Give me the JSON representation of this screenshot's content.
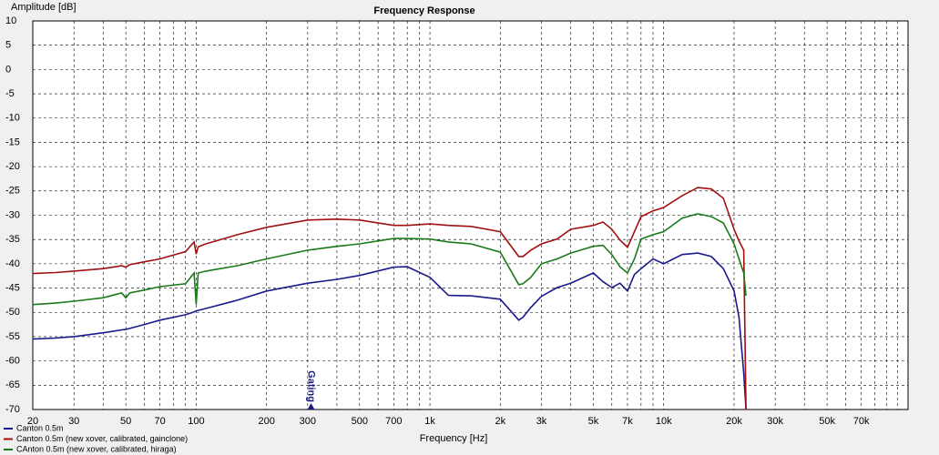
{
  "chart_data": {
    "type": "line",
    "title": "Frequency Response",
    "x_label": "Frequency [Hz]",
    "y_label": "Amplitude [dB]",
    "x_scale": "log",
    "grid": true,
    "xlim": [
      20,
      111000
    ],
    "ylim": [
      -70,
      10
    ],
    "xticks": [
      20,
      30,
      50,
      70,
      100,
      200,
      300,
      500,
      700,
      {
        "value": 1000,
        "label": "1k"
      },
      {
        "value": 2000,
        "label": "2k"
      },
      {
        "value": 3000,
        "label": "3k"
      },
      {
        "value": 5000,
        "label": "5k"
      },
      {
        "value": 7000,
        "label": "7k"
      },
      {
        "value": 10000,
        "label": "10k"
      },
      {
        "value": 20000,
        "label": "20k"
      },
      {
        "value": 30000,
        "label": "30k"
      },
      {
        "value": 50000,
        "label": "50k"
      },
      {
        "value": 70000,
        "label": "70k"
      }
    ],
    "x_minor_gridlines": [
      40,
      60,
      80,
      90,
      400,
      600,
      800,
      900,
      4000,
      6000,
      8000,
      9000,
      40000,
      60000,
      80000,
      90000,
      100000
    ],
    "yticks": [
      10,
      5,
      0,
      -5,
      -10,
      -15,
      -20,
      -25,
      -30,
      -35,
      -40,
      -45,
      -50,
      -55,
      -60,
      -65,
      -70
    ],
    "annotation": {
      "text": "Gating",
      "x": 310
    },
    "x": [
      20,
      25,
      30,
      40,
      48,
      50,
      52,
      60,
      70,
      90,
      98,
      100,
      102,
      110,
      150,
      200,
      300,
      400,
      500,
      700,
      800,
      1000,
      1200,
      1500,
      2000,
      2400,
      2500,
      2700,
      3000,
      3500,
      4000,
      5000,
      5500,
      6000,
      6500,
      7000,
      7500,
      8000,
      9000,
      10000,
      12000,
      14000,
      16000,
      18000,
      20000,
      21000,
      22000,
      22500
    ],
    "series": [
      {
        "name": "Canton 0.5m",
        "color": "#1a1a8c",
        "values": [
          -55.5,
          -55.3,
          -55,
          -54.2,
          -53.6,
          -53.5,
          -53.3,
          -52.5,
          -51.6,
          -50.5,
          -49.9,
          -49.7,
          -49.6,
          -49.2,
          -47.5,
          -45.6,
          -44,
          -43.2,
          -42.4,
          -40.7,
          -40.6,
          -42.8,
          -46.5,
          -46.6,
          -47.3,
          -51.6,
          -51,
          -49,
          -46.7,
          -44.9,
          -44,
          -41.9,
          -43.7,
          -44.9,
          -44,
          -45.6,
          -42.2,
          -41,
          -39,
          -40,
          -38.1,
          -37.8,
          -38.5,
          -41,
          -45.6,
          -51,
          -62.5,
          -70
        ]
      },
      {
        "name": "Canton 0.5m (new xover, calibrated, gainclone)",
        "color": "#a01010",
        "values": [
          -42,
          -41.8,
          -41.5,
          -41,
          -40.4,
          -40.7,
          -40.2,
          -39.6,
          -39,
          -37.5,
          -35.5,
          -38,
          -36.5,
          -35.9,
          -34,
          -32.5,
          -31,
          -30.8,
          -31,
          -32.1,
          -32.1,
          -31.8,
          -32.1,
          -32.3,
          -33.4,
          -38.5,
          -38.5,
          -37.2,
          -35.9,
          -34.9,
          -32.9,
          -32.1,
          -31.4,
          -32.9,
          -35.1,
          -36.6,
          -33.4,
          -30.3,
          -29.1,
          -28.4,
          -26,
          -24.3,
          -24.6,
          -26.5,
          -32.9,
          -35.3,
          -37.2,
          -70
        ]
      },
      {
        "name": "CAnton 0.5m (new xover, calibrated, hiraga)",
        "color": "#1a7a1a",
        "values": [
          -48.4,
          -48.1,
          -47.7,
          -47,
          -46,
          -47,
          -46,
          -45.4,
          -44.7,
          -44.1,
          -41.9,
          -48.4,
          -41.9,
          -41.5,
          -40.4,
          -39,
          -37.2,
          -36.4,
          -35.9,
          -34.8,
          -34.8,
          -34.9,
          -35.5,
          -35.9,
          -37.6,
          -44.3,
          -44.1,
          -42.8,
          -40,
          -39,
          -37.8,
          -36.4,
          -36.2,
          -38.1,
          -40.6,
          -41.9,
          -39,
          -34.9,
          -34,
          -33.4,
          -30.6,
          -29.7,
          -30.3,
          -31.6,
          -35.9,
          -39,
          -41.9,
          -46.6
        ]
      }
    ]
  }
}
